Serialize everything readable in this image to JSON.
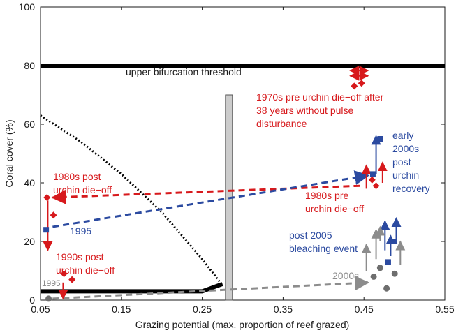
{
  "chart_data": {
    "type": "line",
    "title": "",
    "xlabel": "Grazing potential (max. proportion of reef grazed)",
    "ylabel": "Coral cover (%)",
    "xlim": [
      0.05,
      0.55
    ],
    "ylim": [
      0,
      100
    ],
    "xticks": [
      "0.05",
      "0.15",
      "0.25",
      "0.35",
      "0.45",
      "0.55"
    ],
    "yticks": [
      "0",
      "20",
      "40",
      "60",
      "80",
      "100"
    ],
    "colors": {
      "red": "#d7191c",
      "blue": "#2b4aa0",
      "gray": "#8c8c8c",
      "black": "#000000",
      "bar": "#cccccc"
    },
    "series": [
      {
        "name": "upper-stable-equilibrium",
        "style": "solid-black-thick",
        "x": [
          0.05,
          0.55
        ],
        "y": [
          80,
          80
        ]
      },
      {
        "name": "lower-stable-equilibrium",
        "style": "solid-black-thick",
        "x": [
          0.05,
          0.25,
          0.275
        ],
        "y": [
          3,
          3,
          5.5
        ]
      },
      {
        "name": "unstable-equilibrium",
        "style": "dotted-black",
        "x": [
          0.05,
          0.1,
          0.15,
          0.2,
          0.25,
          0.275
        ],
        "y": [
          63,
          54,
          43,
          30,
          14,
          5
        ]
      }
    ],
    "threshold_bar": {
      "x": 0.283,
      "y_range": [
        0,
        70
      ]
    },
    "labels": {
      "upper_threshold": "upper bifurcation threshold",
      "label_1970s": [
        "1970s pre urchin die−off after",
        "38 years without pulse",
        "disturbance"
      ],
      "label_1980s_post": [
        "1980s post",
        "urchin die−off"
      ],
      "label_1980s_pre": [
        "1980s pre",
        "urchin die−off"
      ],
      "label_early2000s": [
        "early",
        "2000s",
        "post",
        "urchin",
        "recovery"
      ],
      "label_1995_blue": "1995",
      "label_1990s_post": [
        "1990s post",
        "urchin die−off"
      ],
      "label_1995_gray": "1995",
      "label_post2005": [
        "post 2005",
        "bleaching event"
      ],
      "label_2000s": "2000s"
    },
    "points": {
      "red": [
        {
          "name": "1970s-a",
          "x": 0.438,
          "y": 73
        },
        {
          "name": "1970s-b",
          "x": 0.447,
          "y": 74
        },
        {
          "name": "1980s-post-a",
          "x": 0.058,
          "y": 35
        },
        {
          "name": "1980s-post-b",
          "x": 0.066,
          "y": 29
        },
        {
          "name": "1980s-pre-a",
          "x": 0.465,
          "y": 39
        },
        {
          "name": "1980s-pre-b",
          "x": 0.46,
          "y": 41
        },
        {
          "name": "1990s-post-a",
          "x": 0.079,
          "y": 9
        },
        {
          "name": "1990s-post-b",
          "x": 0.089,
          "y": 7
        }
      ],
      "blue": [
        {
          "name": "early2000s-a",
          "x": 0.461,
          "y": 43
        },
        {
          "name": "early2000s-b",
          "x": 0.47,
          "y": 55
        },
        {
          "name": "1995-blue",
          "x": 0.057,
          "y": 24
        },
        {
          "name": "post2005-a",
          "x": 0.48,
          "y": 13
        },
        {
          "name": "post2005-b",
          "x": 0.487,
          "y": 20
        }
      ],
      "gray": [
        {
          "name": "1995-gray",
          "x": 0.06,
          "y": 0.5
        },
        {
          "name": "2000s-a",
          "x": 0.462,
          "y": 8
        },
        {
          "name": "2000s-b",
          "x": 0.47,
          "y": 11
        },
        {
          "name": "2000s-c",
          "x": 0.478,
          "y": 4
        },
        {
          "name": "2000s-d",
          "x": 0.488,
          "y": 9
        }
      ]
    },
    "trajectories": [
      {
        "name": "red-1980s-pre-to-post",
        "color": "red",
        "from": [
          0.445,
          39
        ],
        "to": [
          0.065,
          35
        ]
      },
      {
        "name": "blue-1995-to-early2000s",
        "color": "blue",
        "from": [
          0.065,
          25
        ],
        "to": [
          0.455,
          42.5
        ]
      },
      {
        "name": "gray-1995-to-2000s",
        "color": "gray",
        "from": [
          0.065,
          0.5
        ],
        "to": [
          0.455,
          6
        ]
      }
    ],
    "error_bars": [
      {
        "name": "1970s-range",
        "color": "red",
        "orient": "h",
        "x1": 0.433,
        "x2": 0.455,
        "y": 78.3
      },
      {
        "name": "1970s-range-2",
        "color": "red",
        "orient": "h",
        "x1": 0.433,
        "x2": 0.455,
        "y": 76.5
      },
      {
        "name": "1980s-post-range",
        "color": "red",
        "orient": "v",
        "x": 0.059,
        "y1": 34,
        "y2": 17
      },
      {
        "name": "1980s-pre-up-a",
        "color": "red",
        "orient": "v",
        "x": 0.453,
        "y1": 38,
        "y2": 46
      },
      {
        "name": "1980s-pre-up-b",
        "color": "red",
        "orient": "v",
        "x": 0.473,
        "y1": 40,
        "y2": 47
      },
      {
        "name": "early2000s-up-a",
        "color": "blue",
        "orient": "v",
        "x": 0.465,
        "y1": 43,
        "y2": 56
      },
      {
        "name": "1990s-post-range",
        "color": "red",
        "orient": "v",
        "x": 0.078,
        "y1": 6,
        "y2": 0.5
      },
      {
        "name": "post2005-up-a",
        "color": "blue",
        "orient": "v",
        "x": 0.476,
        "y1": 17,
        "y2": 27
      },
      {
        "name": "post2005-up-b",
        "color": "blue",
        "orient": "v",
        "x": 0.49,
        "y1": 20,
        "y2": 28
      },
      {
        "name": "post2005-up-c",
        "color": "blue",
        "orient": "v",
        "x": 0.483,
        "y1": 15,
        "y2": 22
      },
      {
        "name": "2000s-up-a",
        "color": "gray",
        "orient": "v",
        "x": 0.453,
        "y1": 10,
        "y2": 19
      },
      {
        "name": "2000s-up-b",
        "color": "gray",
        "orient": "v",
        "x": 0.465,
        "y1": 14,
        "y2": 24
      },
      {
        "name": "2000s-up-c",
        "color": "gray",
        "orient": "v",
        "x": 0.47,
        "y1": 20,
        "y2": 25
      },
      {
        "name": "2000s-up-d",
        "color": "gray",
        "orient": "v",
        "x": 0.495,
        "y1": 12,
        "y2": 20
      }
    ],
    "grid": false
  }
}
